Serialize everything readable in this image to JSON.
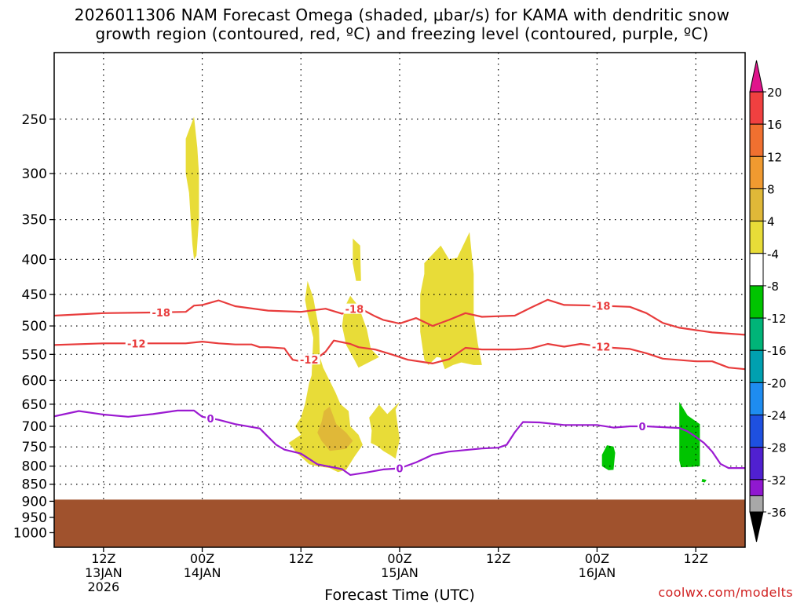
{
  "chart_data": {
    "type": "heatmap",
    "title": {
      "line1": "2026011306 NAM Forecast Omega (shaded, μbar/s) for KAMA with dendritic snow",
      "line2": "growth region (contoured, red, ºC) and freezing level (contoured, purple, ºC)"
    },
    "xlabel": "Forecast Time (UTC)",
    "ylabel": "",
    "credit": "coolwx.com/modelts",
    "x_ticks": [
      {
        "lines": [
          "12Z",
          "13JAN",
          "2026"
        ]
      },
      {
        "lines": [
          "00Z",
          "14JAN"
        ]
      },
      {
        "lines": [
          "12Z"
        ]
      },
      {
        "lines": [
          "00Z",
          "15JAN"
        ]
      },
      {
        "lines": [
          "12Z"
        ]
      },
      {
        "lines": [
          "00Z",
          "16JAN"
        ]
      },
      {
        "lines": [
          "12Z"
        ]
      }
    ],
    "x_tick_hours": [
      6,
      18,
      30,
      42,
      54,
      66,
      78
    ],
    "xlim_hours": [
      0,
      84
    ],
    "y_ticks": [
      250,
      300,
      350,
      400,
      450,
      500,
      550,
      600,
      650,
      700,
      750,
      800,
      850,
      900,
      950,
      1000
    ],
    "ylim_hPa": [
      200,
      1050
    ],
    "grid": true,
    "terrain": {
      "color": "#a0522d",
      "surface_hPa": 895
    },
    "colorbar": {
      "labels": [
        "20",
        "16",
        "12",
        "8",
        "4",
        "-4",
        "-8",
        "-12",
        "-16",
        "-20",
        "-24",
        "-28",
        "-32",
        "-36"
      ],
      "colors": [
        "#f04040",
        "#f07030",
        "#f09a30",
        "#e0b838",
        "#e8dc38",
        "#ffffff",
        "#00c400",
        "#00b478",
        "#00a0b0",
        "#1e8cf0",
        "#1e50e0",
        "#5020d0",
        "#9018d0",
        "#a8a8a8"
      ],
      "top_arrow_color": "#e0148c",
      "bottom_arrow_color": "#000000"
    },
    "contours_dgz": {
      "color": "#e83c3c",
      "lines": [
        {
          "label": "-18",
          "label_hours": [
            13,
            36.5,
            66.5
          ],
          "points": [
            [
              0,
              483
            ],
            [
              6,
              479
            ],
            [
              12,
              478
            ],
            [
              16,
              477
            ],
            [
              17,
              467
            ],
            [
              18,
              466
            ],
            [
              20,
              459
            ],
            [
              22,
              468
            ],
            [
              26,
              475
            ],
            [
              30,
              477
            ],
            [
              33,
              472
            ],
            [
              35,
              480
            ],
            [
              37,
              470
            ],
            [
              39,
              484
            ],
            [
              40,
              490
            ],
            [
              42,
              496
            ],
            [
              44,
              487
            ],
            [
              46,
              500
            ],
            [
              48,
              490
            ],
            [
              50,
              479
            ],
            [
              52,
              485
            ],
            [
              56,
              483
            ],
            [
              58,
              470
            ],
            [
              60,
              458
            ],
            [
              62,
              466
            ],
            [
              66,
              467
            ],
            [
              70,
              469
            ],
            [
              72,
              479
            ],
            [
              74,
              495
            ],
            [
              76,
              503
            ],
            [
              80,
              511
            ],
            [
              84,
              515
            ]
          ]
        },
        {
          "label": "-12",
          "label_hours": [
            10,
            31,
            66.5
          ],
          "points": [
            [
              0,
              533
            ],
            [
              6,
              530
            ],
            [
              12,
              530
            ],
            [
              16,
              530
            ],
            [
              18,
              527
            ],
            [
              20,
              530
            ],
            [
              22,
              532
            ],
            [
              24,
              532
            ],
            [
              25,
              537
            ],
            [
              26,
              537
            ],
            [
              28,
              539
            ],
            [
              28.5,
              550
            ],
            [
              29,
              560
            ],
            [
              30,
              563
            ],
            [
              32,
              557
            ],
            [
              33,
              545
            ],
            [
              34,
              525
            ],
            [
              36,
              531
            ],
            [
              37,
              537
            ],
            [
              39,
              541
            ],
            [
              41,
              550
            ],
            [
              43,
              560
            ],
            [
              46,
              567
            ],
            [
              47,
              563
            ],
            [
              48,
              559
            ],
            [
              50,
              538
            ],
            [
              52,
              541
            ],
            [
              56,
              541
            ],
            [
              58,
              539
            ],
            [
              60,
              531
            ],
            [
              62,
              536
            ],
            [
              64,
              531
            ],
            [
              66,
              535
            ],
            [
              68,
              538
            ],
            [
              70,
              540
            ],
            [
              72,
              548
            ],
            [
              74,
              558
            ],
            [
              78,
              563
            ],
            [
              80,
              563
            ],
            [
              82,
              575
            ],
            [
              84,
              578
            ]
          ]
        }
      ]
    },
    "contours_freezing": {
      "color": "#9b1ad1",
      "lines": [
        {
          "label": "0",
          "label_hours": [
            19,
            42,
            71.5
          ],
          "points": [
            [
              0,
              677
            ],
            [
              3,
              665
            ],
            [
              6,
              673
            ],
            [
              9,
              678
            ],
            [
              12,
              672
            ],
            [
              15,
              664
            ],
            [
              17,
              664
            ],
            [
              18,
              678
            ],
            [
              20,
              685
            ],
            [
              22,
              695
            ],
            [
              25,
              705
            ],
            [
              26,
              725
            ],
            [
              27,
              745
            ],
            [
              28,
              757
            ],
            [
              30,
              767
            ],
            [
              32,
              795
            ],
            [
              35,
              808
            ],
            [
              36,
              824
            ],
            [
              38,
              817
            ],
            [
              40,
              809
            ],
            [
              42,
              806
            ],
            [
              44,
              790
            ],
            [
              46,
              770
            ],
            [
              48,
              762
            ],
            [
              52,
              754
            ],
            [
              54,
              752
            ],
            [
              55,
              745
            ],
            [
              56,
              714
            ],
            [
              57,
              690
            ],
            [
              59,
              691
            ],
            [
              62,
              697
            ],
            [
              66,
              697
            ],
            [
              68,
              703
            ],
            [
              70,
              700
            ],
            [
              72,
              700
            ],
            [
              76,
              704
            ],
            [
              77,
              712
            ],
            [
              78,
              725
            ],
            [
              79,
              740
            ],
            [
              80,
              762
            ],
            [
              81,
              794
            ],
            [
              82,
              805
            ],
            [
              84,
              805
            ]
          ]
        }
      ]
    },
    "omega_regions": [
      {
        "class": "4..8",
        "points": [
          [
            16.0,
            267
          ],
          [
            17.0,
            248
          ],
          [
            17.4,
            275
          ],
          [
            17.6,
            300
          ],
          [
            17.6,
            350
          ],
          [
            17.3,
            395
          ],
          [
            17.0,
            400
          ],
          [
            16.8,
            380
          ],
          [
            16.6,
            350
          ],
          [
            16.4,
            320
          ],
          [
            16.0,
            300
          ]
        ]
      },
      {
        "class": "4..8",
        "points": [
          [
            36.3,
            373
          ],
          [
            37.2,
            382
          ],
          [
            37.3,
            430
          ],
          [
            36.7,
            430
          ],
          [
            36.3,
            405
          ]
        ]
      },
      {
        "class": "4..8",
        "points": [
          [
            30.8,
            430
          ],
          [
            31.5,
            455
          ],
          [
            32.2,
            505
          ],
          [
            32.3,
            555
          ],
          [
            32.7,
            575
          ],
          [
            34.2,
            625
          ],
          [
            34.8,
            650
          ],
          [
            35.8,
            665
          ],
          [
            36.0,
            700
          ],
          [
            37.0,
            720
          ],
          [
            37.5,
            745
          ],
          [
            36.5,
            775
          ],
          [
            35.5,
            810
          ],
          [
            34.5,
            816
          ],
          [
            33.5,
            805
          ],
          [
            32.0,
            800
          ],
          [
            31.0,
            795
          ],
          [
            29.5,
            765
          ],
          [
            28.5,
            740
          ],
          [
            30.0,
            720
          ],
          [
            29.3,
            700
          ],
          [
            30.0,
            680
          ],
          [
            30.5,
            650
          ],
          [
            31.0,
            605
          ],
          [
            31.3,
            590
          ],
          [
            31.5,
            520
          ],
          [
            30.8,
            480
          ],
          [
            30.5,
            458
          ]
        ]
      },
      {
        "class": "8..12",
        "points": [
          [
            33.5,
            655
          ],
          [
            34.3,
            695
          ],
          [
            35.5,
            715
          ],
          [
            36.3,
            735
          ],
          [
            35.5,
            755
          ],
          [
            33.5,
            760
          ],
          [
            32.5,
            735
          ],
          [
            32.0,
            715
          ],
          [
            32.5,
            690
          ],
          [
            32.8,
            665
          ]
        ]
      },
      {
        "class": "4..8",
        "points": [
          [
            36.0,
            452
          ],
          [
            37.0,
            468
          ],
          [
            38.0,
            505
          ],
          [
            38.5,
            540
          ],
          [
            39.0,
            548
          ],
          [
            39.5,
            555
          ],
          [
            37.0,
            575
          ],
          [
            36.5,
            560
          ],
          [
            35.5,
            533
          ],
          [
            35.0,
            500
          ],
          [
            35.3,
            470
          ]
        ]
      },
      {
        "class": "4..8",
        "points": [
          [
            39.5,
            651
          ],
          [
            40.5,
            672
          ],
          [
            42.0,
            645
          ],
          [
            41.5,
            662
          ],
          [
            42.0,
            732
          ],
          [
            41.5,
            780
          ],
          [
            40.8,
            770
          ],
          [
            40.0,
            760
          ],
          [
            39.3,
            748
          ],
          [
            38.5,
            740
          ],
          [
            38.6,
            710
          ],
          [
            38.3,
            680
          ]
        ]
      },
      {
        "class": "4..8",
        "points": [
          [
            45.0,
            405
          ],
          [
            47.0,
            382
          ],
          [
            48.0,
            400
          ],
          [
            49.0,
            398
          ],
          [
            50.5,
            365
          ],
          [
            51.0,
            420
          ],
          [
            51.0,
            480
          ],
          [
            51.5,
            530
          ],
          [
            52.0,
            570
          ],
          [
            51.0,
            570
          ],
          [
            49.5,
            565
          ],
          [
            48.5,
            570
          ],
          [
            47.5,
            578
          ],
          [
            47.0,
            556
          ],
          [
            46.5,
            555
          ],
          [
            45.5,
            570
          ],
          [
            45.0,
            560
          ],
          [
            44.5,
            510
          ],
          [
            44.5,
            450
          ],
          [
            45.0,
            420
          ]
        ]
      },
      {
        "class": "-8..-4",
        "points": [
          [
            67.2,
            746
          ],
          [
            68.0,
            749
          ],
          [
            68.2,
            765
          ],
          [
            68.0,
            810
          ],
          [
            67.4,
            811
          ],
          [
            66.6,
            800
          ],
          [
            66.6,
            770
          ]
        ]
      },
      {
        "class": "-8..-4",
        "points": [
          [
            76.0,
            645
          ],
          [
            77.0,
            675
          ],
          [
            78.5,
            695
          ],
          [
            78.5,
            800
          ],
          [
            77.5,
            802
          ],
          [
            76.2,
            803
          ],
          [
            76.0,
            785
          ]
        ]
      },
      {
        "class": "-8..-4",
        "points": [
          [
            78.8,
            835
          ],
          [
            79.3,
            838
          ],
          [
            79.1,
            845
          ],
          [
            78.7,
            843
          ]
        ]
      }
    ]
  }
}
